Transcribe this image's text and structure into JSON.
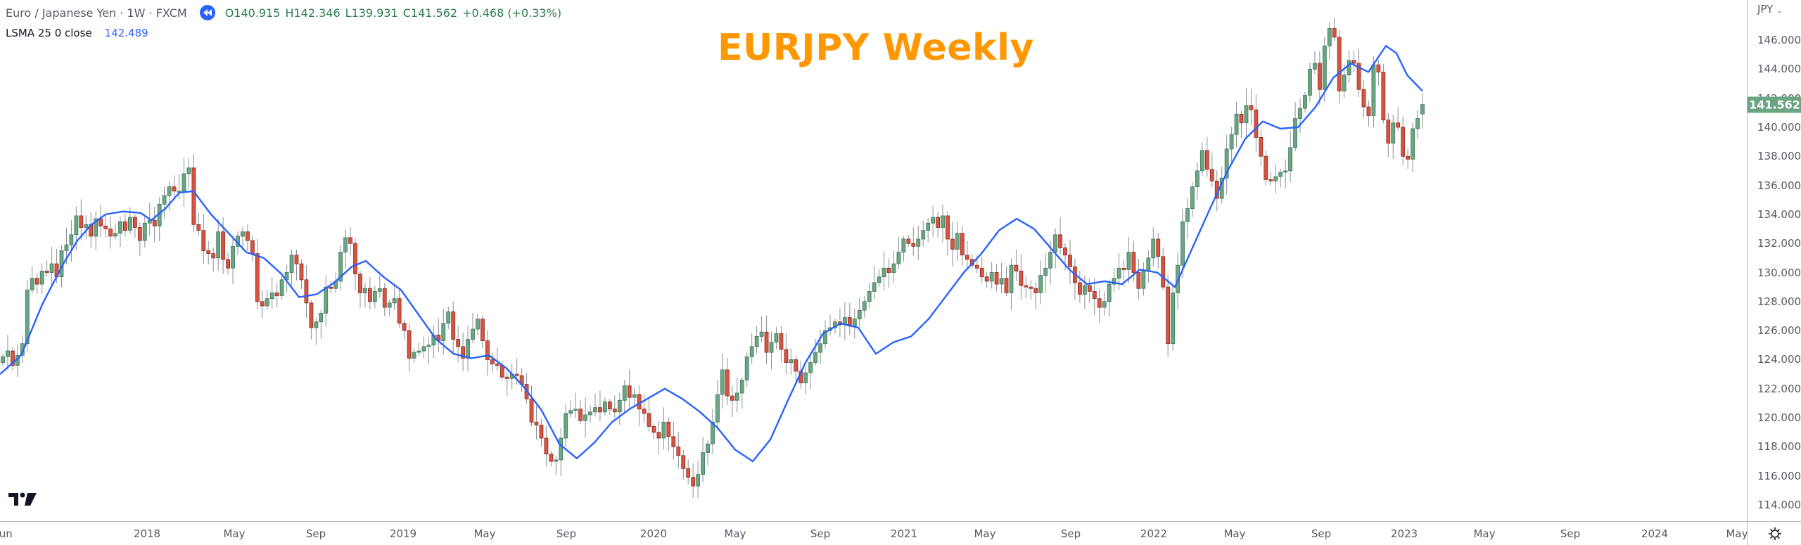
{
  "legend": {
    "symbol": "Euro / Japanese Yen · 1W · FXCM",
    "open": "O140.915",
    "high": "H142.346",
    "low": "L139.931",
    "close": "C141.562",
    "change": "+0.468 (+0.33%)",
    "indicator_label": "LSMA 25 0 close",
    "indicator_value": "142.489"
  },
  "title": "EURJPY Weekly",
  "price_axis": {
    "currency": "JPY",
    "current_price": "141.562",
    "ticks": [
      "146.000",
      "144.000",
      "142.000",
      "140.000",
      "138.000",
      "136.000",
      "134.000",
      "132.000",
      "130.000",
      "128.000",
      "126.000",
      "124.000",
      "122.000",
      "120.000",
      "118.000",
      "116.000",
      "114.000"
    ]
  },
  "time_axis": {
    "labels": [
      "Jun",
      "2018",
      "May",
      "Sep",
      "2019",
      "May",
      "Sep",
      "2020",
      "May",
      "Sep",
      "2021",
      "May",
      "Sep",
      "2022",
      "May",
      "Sep",
      "2023",
      "May",
      "Sep",
      "2024",
      "May"
    ]
  },
  "colors": {
    "up": "#6ba583",
    "down": "#d75442",
    "wick": "#8a8f99",
    "lsma": "#2962ff",
    "title": "#ff9800"
  },
  "chart_data": {
    "type": "candlestick",
    "title": "EURJPY Weekly",
    "symbol": "Euro / Japanese Yen · 1W · FXCM",
    "ylabel": "JPY",
    "ylim": [
      113,
      148
    ],
    "x_range": [
      "Jun 2017",
      "Feb 2023"
    ],
    "x_tick_labels": [
      "Jun",
      "2018",
      "May",
      "Sep",
      "2019",
      "May",
      "Sep",
      "2020",
      "May",
      "Sep",
      "2021",
      "May",
      "Sep",
      "2022",
      "May",
      "Sep",
      "2023",
      "May",
      "Sep",
      "2024",
      "May"
    ],
    "last_bar": {
      "open": 140.915,
      "high": 142.346,
      "low": 139.931,
      "close": 141.562,
      "change": 0.468,
      "change_pct": 0.33
    },
    "indicator": {
      "name": "LSMA 25 0 close",
      "last_value": 142.489
    },
    "weekly_closes": [
      124.2,
      124.6,
      123.6,
      124.3,
      125.1,
      128.8,
      129.6,
      129.2,
      130.1,
      130.0,
      130.6,
      129.7,
      131.5,
      131.9,
      132.6,
      133.9,
      133.1,
      133.3,
      132.5,
      133.7,
      133.2,
      133.0,
      132.5,
      132.7,
      133.5,
      132.9,
      133.8,
      133.1,
      132.2,
      133.4,
      133.6,
      133.2,
      134.7,
      135.3,
      135.9,
      135.6,
      135.6,
      136.8,
      137.2,
      133.3,
      132.9,
      131.5,
      131.3,
      131.0,
      132.8,
      130.9,
      130.3,
      131.8,
      132.5,
      132.8,
      132.2,
      131.3,
      128.0,
      127.7,
      128.2,
      128.6,
      128.4,
      129.5,
      130.0,
      131.2,
      130.6,
      129.5,
      127.9,
      126.2,
      126.6,
      127.2,
      129.0,
      128.9,
      129.4,
      131.4,
      132.4,
      132.0,
      129.9,
      128.6,
      128.9,
      128.0,
      128.7,
      128.9,
      127.6,
      127.9,
      128.2,
      126.5,
      126.0,
      124.1,
      124.5,
      124.6,
      124.9,
      125.0,
      125.7,
      125.3,
      126.5,
      127.3,
      125.4,
      124.9,
      124.1,
      125.4,
      126.1,
      126.8,
      125.3,
      124.0,
      123.7,
      123.6,
      122.8,
      122.7,
      123.0,
      122.9,
      122.3,
      121.3,
      119.7,
      119.5,
      118.6,
      117.5,
      117.0,
      117.1,
      118.6,
      120.3,
      120.5,
      120.6,
      119.8,
      120.2,
      120.4,
      120.7,
      120.4,
      121.1,
      120.6,
      120.4,
      121.2,
      122.2,
      121.4,
      121.6,
      120.6,
      120.3,
      119.4,
      119.0,
      118.6,
      119.7,
      118.7,
      118.0,
      117.4,
      116.5,
      115.9,
      115.3,
      116.1,
      117.6,
      118.2,
      119.7,
      121.6,
      123.3,
      121.5,
      121.2,
      121.7,
      122.6,
      124.2,
      124.9,
      125.6,
      125.9,
      124.5,
      125.2,
      125.8,
      124.7,
      123.8,
      124.0,
      123.2,
      122.4,
      123.1,
      123.8,
      124.5,
      125.1,
      126.0,
      126.2,
      126.6,
      126.4,
      126.9,
      126.3,
      126.8,
      127.4,
      128.0,
      128.7,
      129.3,
      129.7,
      130.3,
      130.0,
      130.6,
      131.4,
      132.3,
      132.0,
      131.8,
      132.3,
      132.9,
      133.4,
      133.8,
      133.1,
      133.9,
      132.3,
      131.6,
      132.7,
      131.2,
      130.9,
      130.5,
      130.3,
      129.7,
      129.4,
      130.0,
      129.2,
      129.6,
      128.6,
      130.5,
      130.1,
      129.1,
      129.0,
      128.9,
      128.6,
      129.8,
      130.3,
      131.4,
      132.6,
      131.7,
      131.2,
      130.4,
      129.3,
      128.5,
      129.1,
      128.7,
      128.2,
      127.6,
      128.0,
      129.2,
      129.6,
      130.3,
      130.2,
      131.4,
      130.0,
      128.9,
      130.1,
      131.0,
      132.3,
      131.1,
      129.0,
      125.1,
      128.6,
      130.5,
      133.5,
      134.4,
      135.9,
      137.0,
      138.4,
      137.1,
      136.3,
      135.1,
      136.5,
      138.5,
      139.5,
      140.9,
      140.3,
      141.5,
      141.2,
      139.3,
      138.0,
      136.4,
      136.3,
      136.6,
      136.9,
      137.0,
      138.6,
      140.6,
      141.3,
      142.2,
      144.0,
      144.4,
      142.6,
      145.6,
      146.8,
      146.2,
      142.5,
      143.6,
      144.6,
      144.4,
      142.6,
      141.4,
      140.8,
      144.3,
      143.8,
      140.5,
      138.9,
      140.3,
      140.0,
      138.0,
      137.8,
      139.9,
      140.6,
      141.562
    ],
    "lsma_values_note": "LSMA 25 rendered as smoothed line following closes",
    "lsma_points": [
      [
        0,
        123.0
      ],
      [
        30,
        124.3
      ],
      [
        60,
        127.8
      ],
      [
        90,
        130.6
      ],
      [
        110,
        132.2
      ],
      [
        130,
        133.3
      ],
      [
        150,
        134.0
      ],
      [
        175,
        134.2
      ],
      [
        200,
        134.1
      ],
      [
        215,
        133.6
      ],
      [
        235,
        134.4
      ],
      [
        255,
        135.5
      ],
      [
        275,
        135.6
      ],
      [
        300,
        134.0
      ],
      [
        325,
        132.7
      ],
      [
        350,
        131.4
      ],
      [
        375,
        131.0
      ],
      [
        400,
        129.9
      ],
      [
        425,
        128.3
      ],
      [
        450,
        128.5
      ],
      [
        475,
        129.3
      ],
      [
        500,
        130.4
      ],
      [
        520,
        130.8
      ],
      [
        545,
        129.7
      ],
      [
        570,
        128.8
      ],
      [
        595,
        127.1
      ],
      [
        620,
        125.4
      ],
      [
        645,
        124.4
      ],
      [
        670,
        124.1
      ],
      [
        695,
        124.3
      ],
      [
        720,
        123.4
      ],
      [
        745,
        122.1
      ],
      [
        770,
        120.5
      ],
      [
        795,
        118.2
      ],
      [
        820,
        117.2
      ],
      [
        845,
        118.3
      ],
      [
        870,
        119.7
      ],
      [
        895,
        120.6
      ],
      [
        920,
        121.3
      ],
      [
        945,
        122.0
      ],
      [
        970,
        121.3
      ],
      [
        995,
        120.4
      ],
      [
        1020,
        119.3
      ],
      [
        1045,
        117.8
      ],
      [
        1070,
        117.0
      ],
      [
        1095,
        118.5
      ],
      [
        1120,
        121.2
      ],
      [
        1145,
        123.8
      ],
      [
        1170,
        125.8
      ],
      [
        1195,
        126.5
      ],
      [
        1220,
        126.2
      ],
      [
        1245,
        124.4
      ],
      [
        1270,
        125.2
      ],
      [
        1295,
        125.6
      ],
      [
        1320,
        126.8
      ],
      [
        1345,
        128.4
      ],
      [
        1370,
        130.0
      ],
      [
        1395,
        131.3
      ],
      [
        1420,
        132.9
      ],
      [
        1445,
        133.7
      ],
      [
        1470,
        133.0
      ],
      [
        1495,
        131.6
      ],
      [
        1520,
        130.2
      ],
      [
        1545,
        129.2
      ],
      [
        1570,
        129.4
      ],
      [
        1595,
        129.2
      ],
      [
        1620,
        130.2
      ],
      [
        1645,
        130.0
      ],
      [
        1670,
        129.0
      ],
      [
        1695,
        131.7
      ],
      [
        1720,
        134.4
      ],
      [
        1745,
        137.0
      ],
      [
        1770,
        139.2
      ],
      [
        1795,
        140.4
      ],
      [
        1820,
        139.9
      ],
      [
        1845,
        140.0
      ],
      [
        1870,
        141.4
      ],
      [
        1895,
        143.4
      ],
      [
        1920,
        144.4
      ],
      [
        1945,
        143.8
      ],
      [
        1970,
        145.6
      ],
      [
        1985,
        145.1
      ],
      [
        2000,
        143.6
      ],
      [
        2022,
        142.49
      ]
    ]
  }
}
